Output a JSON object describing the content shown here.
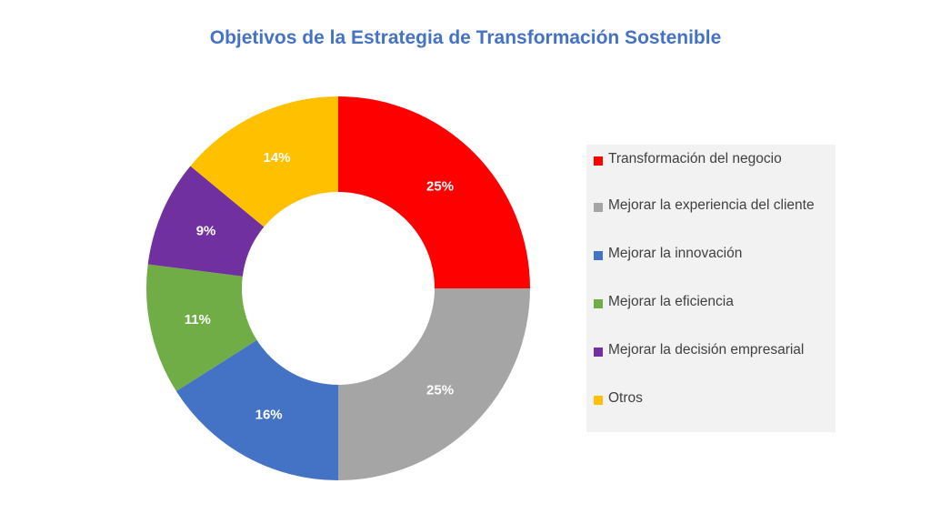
{
  "chart_data": {
    "type": "pie",
    "variant": "donut",
    "title": "Objetivos de la Estrategia de Transformación Sostenible",
    "categories": [
      "Transformación del negocio",
      "Mejorar la experiencia del cliente",
      "Mejorar la innovación",
      "Mejorar la eficiencia",
      "Mejorar la decisión empresarial",
      "Otros"
    ],
    "values": [
      25,
      25,
      16,
      11,
      9,
      14
    ],
    "data_labels": [
      "25%",
      "25%",
      "16%",
      "11%",
      "9%",
      "14%"
    ],
    "colors": [
      "#FF0000",
      "#A5A5A5",
      "#4472C4",
      "#70AD47",
      "#7030A0",
      "#FFC000"
    ],
    "legend_position": "right"
  }
}
